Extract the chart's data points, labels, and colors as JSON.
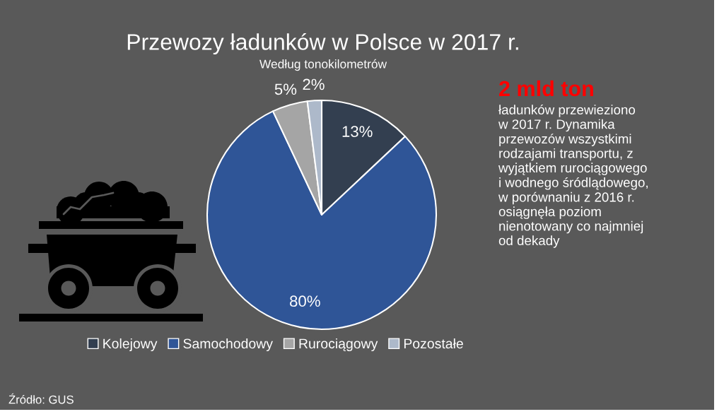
{
  "chart_data": {
    "type": "pie",
    "title": "Przewozy ładunków w Polsce w 2017 r.",
    "subtitle": "Według tonokilometrów",
    "categories": [
      "Kolejowy",
      "Samochodowy",
      "Rurociągowy",
      "Pozostałe"
    ],
    "values": [
      13,
      80,
      5,
      2
    ],
    "colors": [
      "#333f50",
      "#2f5597",
      "#a5a5a5",
      "#adb9ca"
    ],
    "value_labels": [
      "13%",
      "80%",
      "5%",
      "2%"
    ],
    "legend": "bottom",
    "annotations": [
      "2 mld ton",
      "ładunków przewieziono\nw 2017 r. Dynamika\nprzewozów wszystkimi\nrodzajami transportu, z\nwyjątkiem rurociągowego\ni wodnego śródlądowego,\nw porównaniu z 2016 r.\nosiągnęła poziom\nnienotowany co najmniej\nod dekady",
      "Źródło: GUS"
    ]
  }
}
